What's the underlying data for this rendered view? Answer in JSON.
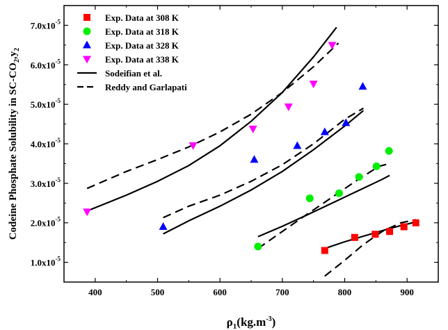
{
  "chart_data": {
    "type": "scatter",
    "xlabel": {
      "main": "ρ",
      "sub": "1",
      "rest": "(kg.m",
      "sup": "-3",
      "end": ")"
    },
    "ylabel": {
      "main": "Codeine Phosphate Solubility in SC-CO",
      "sub": "2",
      "sep": ",y",
      "sub2": "2"
    },
    "xlim": [
      350,
      950
    ],
    "ylim": [
      5e-06,
      7.5e-05
    ],
    "xticks": [
      400,
      500,
      600,
      700,
      800,
      900
    ],
    "xtick_labels": [
      "400",
      "500",
      "600",
      "700",
      "800",
      "900"
    ],
    "yticks": [
      1e-05,
      2e-05,
      3e-05,
      4e-05,
      5e-05,
      6e-05,
      7e-05
    ],
    "ytick_labels": [
      {
        "base": "1.0x10",
        "exp": "-5"
      },
      {
        "base": "2.0x10",
        "exp": "-5"
      },
      {
        "base": "3.0x10",
        "exp": "-5"
      },
      {
        "base": "4.0x10",
        "exp": "-5"
      },
      {
        "base": "5.0x10",
        "exp": "-5"
      },
      {
        "base": "6.0x10",
        "exp": "-5"
      },
      {
        "base": "7.0x10",
        "exp": "-5"
      }
    ],
    "legend_position": "top-left",
    "series": [
      {
        "name": "Exp. Data at 308 K",
        "marker": "square",
        "color": "#ff0000",
        "x": [
          768,
          816,
          849,
          872,
          895,
          914
        ],
        "y": [
          1.3e-05,
          1.63e-05,
          1.71e-05,
          1.78e-05,
          1.9e-05,
          2e-05
        ]
      },
      {
        "name": "Exp. Data at 318 K",
        "marker": "circle",
        "color": "#00ee00",
        "x": [
          661,
          744,
          791,
          823,
          851,
          871
        ],
        "y": [
          1.4e-05,
          2.62e-05,
          2.75e-05,
          3.16e-05,
          3.43e-05,
          3.82e-05
        ]
      },
      {
        "name": "Exp. Data at 328 K",
        "marker": "triangle-up",
        "color": "#0000ff",
        "x": [
          509,
          655,
          724,
          768,
          802,
          829
        ],
        "y": [
          1.9e-05,
          3.6e-05,
          3.95e-05,
          4.3e-05,
          4.53e-05,
          5.45e-05
        ]
      },
      {
        "name": "Exp. Data at 338 K",
        "marker": "triangle-down",
        "color": "#ff00ff",
        "x": [
          387,
          557,
          653,
          710,
          750,
          780
        ],
        "y": [
          2.28e-05,
          3.96e-05,
          4.38e-05,
          4.94e-05,
          5.52e-05,
          6.5e-05
        ]
      }
    ],
    "models": [
      {
        "name": "Sodeifian et al.",
        "style": "solid",
        "curves": [
          {
            "x": [
              768,
              800,
              830,
              860,
              890,
              914
            ],
            "y": [
              1.35e-05,
              1.52e-05,
              1.66e-05,
              1.8e-05,
              1.93e-05,
              2.02e-05
            ]
          },
          {
            "x": [
              661,
              700,
              740,
              780,
              820,
              860,
              872
            ],
            "y": [
              1.65e-05,
              1.91e-05,
              2.2e-05,
              2.5e-05,
              2.8e-05,
              3.1e-05,
              3.2e-05
            ]
          },
          {
            "x": [
              509,
              550,
              600,
              650,
              700,
              750,
              800,
              830
            ],
            "y": [
              1.72e-05,
              2.05e-05,
              2.42e-05,
              2.83e-05,
              3.3e-05,
              3.85e-05,
              4.45e-05,
              4.84e-05
            ]
          },
          {
            "x": [
              387,
              450,
              500,
              550,
              600,
              650,
              700,
              750,
              787
            ],
            "y": [
              2.3e-05,
              2.7e-05,
              3.05e-05,
              3.45e-05,
              3.95e-05,
              4.57e-05,
              5.3e-05,
              6.2e-05,
              6.95e-05
            ]
          }
        ]
      },
      {
        "name": "Reddy and Garlapati",
        "style": "dashed",
        "curves": [
          {
            "x": [
              768,
              800,
              830,
              860,
              890,
              914
            ],
            "y": [
              6.5e-06,
              1.05e-05,
              1.45e-05,
              1.78e-05,
              2e-05,
              2.08e-05
            ]
          },
          {
            "x": [
              661,
              700,
              740,
              780,
              820,
              855,
              872
            ],
            "y": [
              1.35e-05,
              1.78e-05,
              2.22e-05,
              2.65e-05,
              3.08e-05,
              3.43e-05,
              3.5e-05
            ]
          },
          {
            "x": [
              509,
              550,
              600,
              650,
              700,
              750,
              800,
              830
            ],
            "y": [
              2.13e-05,
              2.42e-05,
              2.7e-05,
              3.05e-05,
              3.47e-05,
              4e-05,
              4.62e-05,
              4.9e-05
            ]
          },
          {
            "x": [
              387,
              450,
              500,
              550,
              600,
              650,
              700,
              750,
              790
            ],
            "y": [
              2.87e-05,
              3.3e-05,
              3.6e-05,
              3.92e-05,
              4.3e-05,
              4.75e-05,
              5.3e-05,
              5.95e-05,
              6.55e-05
            ]
          }
        ]
      }
    ]
  }
}
